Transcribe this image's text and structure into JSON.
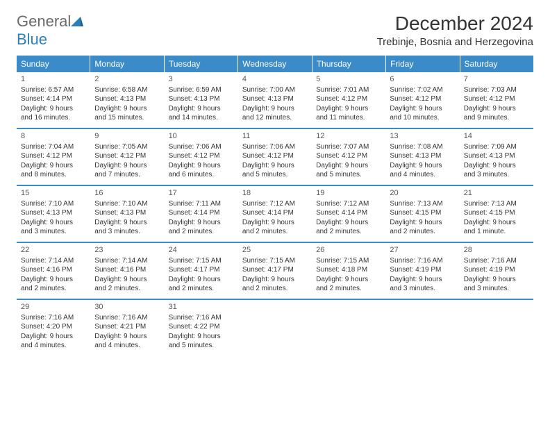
{
  "brand": {
    "word1": "General",
    "word2": "Blue"
  },
  "title": "December 2024",
  "location": "Trebinje, Bosnia and Herzegovina",
  "colors": {
    "header_bg": "#3b8bc8",
    "header_text": "#ffffff",
    "week_divider": "#3b8bc8",
    "body_text": "#333333",
    "logo_gray": "#6a6a6a",
    "logo_blue": "#2c7fb8",
    "page_bg": "#ffffff"
  },
  "fonts": {
    "base_family": "Arial",
    "title_size_pt": 21,
    "location_size_pt": 11,
    "dayhead_size_pt": 9,
    "cell_size_pt": 7.5
  },
  "day_headers": [
    "Sunday",
    "Monday",
    "Tuesday",
    "Wednesday",
    "Thursday",
    "Friday",
    "Saturday"
  ],
  "days": [
    {
      "n": "1",
      "sr": "Sunrise: 6:57 AM",
      "ss": "Sunset: 4:14 PM",
      "dl": "Daylight: 9 hours and 16 minutes."
    },
    {
      "n": "2",
      "sr": "Sunrise: 6:58 AM",
      "ss": "Sunset: 4:13 PM",
      "dl": "Daylight: 9 hours and 15 minutes."
    },
    {
      "n": "3",
      "sr": "Sunrise: 6:59 AM",
      "ss": "Sunset: 4:13 PM",
      "dl": "Daylight: 9 hours and 14 minutes."
    },
    {
      "n": "4",
      "sr": "Sunrise: 7:00 AM",
      "ss": "Sunset: 4:13 PM",
      "dl": "Daylight: 9 hours and 12 minutes."
    },
    {
      "n": "5",
      "sr": "Sunrise: 7:01 AM",
      "ss": "Sunset: 4:12 PM",
      "dl": "Daylight: 9 hours and 11 minutes."
    },
    {
      "n": "6",
      "sr": "Sunrise: 7:02 AM",
      "ss": "Sunset: 4:12 PM",
      "dl": "Daylight: 9 hours and 10 minutes."
    },
    {
      "n": "7",
      "sr": "Sunrise: 7:03 AM",
      "ss": "Sunset: 4:12 PM",
      "dl": "Daylight: 9 hours and 9 minutes."
    },
    {
      "n": "8",
      "sr": "Sunrise: 7:04 AM",
      "ss": "Sunset: 4:12 PM",
      "dl": "Daylight: 9 hours and 8 minutes."
    },
    {
      "n": "9",
      "sr": "Sunrise: 7:05 AM",
      "ss": "Sunset: 4:12 PM",
      "dl": "Daylight: 9 hours and 7 minutes."
    },
    {
      "n": "10",
      "sr": "Sunrise: 7:06 AM",
      "ss": "Sunset: 4:12 PM",
      "dl": "Daylight: 9 hours and 6 minutes."
    },
    {
      "n": "11",
      "sr": "Sunrise: 7:06 AM",
      "ss": "Sunset: 4:12 PM",
      "dl": "Daylight: 9 hours and 5 minutes."
    },
    {
      "n": "12",
      "sr": "Sunrise: 7:07 AM",
      "ss": "Sunset: 4:12 PM",
      "dl": "Daylight: 9 hours and 5 minutes."
    },
    {
      "n": "13",
      "sr": "Sunrise: 7:08 AM",
      "ss": "Sunset: 4:13 PM",
      "dl": "Daylight: 9 hours and 4 minutes."
    },
    {
      "n": "14",
      "sr": "Sunrise: 7:09 AM",
      "ss": "Sunset: 4:13 PM",
      "dl": "Daylight: 9 hours and 3 minutes."
    },
    {
      "n": "15",
      "sr": "Sunrise: 7:10 AM",
      "ss": "Sunset: 4:13 PM",
      "dl": "Daylight: 9 hours and 3 minutes."
    },
    {
      "n": "16",
      "sr": "Sunrise: 7:10 AM",
      "ss": "Sunset: 4:13 PM",
      "dl": "Daylight: 9 hours and 3 minutes."
    },
    {
      "n": "17",
      "sr": "Sunrise: 7:11 AM",
      "ss": "Sunset: 4:14 PM",
      "dl": "Daylight: 9 hours and 2 minutes."
    },
    {
      "n": "18",
      "sr": "Sunrise: 7:12 AM",
      "ss": "Sunset: 4:14 PM",
      "dl": "Daylight: 9 hours and 2 minutes."
    },
    {
      "n": "19",
      "sr": "Sunrise: 7:12 AM",
      "ss": "Sunset: 4:14 PM",
      "dl": "Daylight: 9 hours and 2 minutes."
    },
    {
      "n": "20",
      "sr": "Sunrise: 7:13 AM",
      "ss": "Sunset: 4:15 PM",
      "dl": "Daylight: 9 hours and 2 minutes."
    },
    {
      "n": "21",
      "sr": "Sunrise: 7:13 AM",
      "ss": "Sunset: 4:15 PM",
      "dl": "Daylight: 9 hours and 1 minute."
    },
    {
      "n": "22",
      "sr": "Sunrise: 7:14 AM",
      "ss": "Sunset: 4:16 PM",
      "dl": "Daylight: 9 hours and 2 minutes."
    },
    {
      "n": "23",
      "sr": "Sunrise: 7:14 AM",
      "ss": "Sunset: 4:16 PM",
      "dl": "Daylight: 9 hours and 2 minutes."
    },
    {
      "n": "24",
      "sr": "Sunrise: 7:15 AM",
      "ss": "Sunset: 4:17 PM",
      "dl": "Daylight: 9 hours and 2 minutes."
    },
    {
      "n": "25",
      "sr": "Sunrise: 7:15 AM",
      "ss": "Sunset: 4:17 PM",
      "dl": "Daylight: 9 hours and 2 minutes."
    },
    {
      "n": "26",
      "sr": "Sunrise: 7:15 AM",
      "ss": "Sunset: 4:18 PM",
      "dl": "Daylight: 9 hours and 2 minutes."
    },
    {
      "n": "27",
      "sr": "Sunrise: 7:16 AM",
      "ss": "Sunset: 4:19 PM",
      "dl": "Daylight: 9 hours and 3 minutes."
    },
    {
      "n": "28",
      "sr": "Sunrise: 7:16 AM",
      "ss": "Sunset: 4:19 PM",
      "dl": "Daylight: 9 hours and 3 minutes."
    },
    {
      "n": "29",
      "sr": "Sunrise: 7:16 AM",
      "ss": "Sunset: 4:20 PM",
      "dl": "Daylight: 9 hours and 4 minutes."
    },
    {
      "n": "30",
      "sr": "Sunrise: 7:16 AM",
      "ss": "Sunset: 4:21 PM",
      "dl": "Daylight: 9 hours and 4 minutes."
    },
    {
      "n": "31",
      "sr": "Sunrise: 7:16 AM",
      "ss": "Sunset: 4:22 PM",
      "dl": "Daylight: 9 hours and 5 minutes."
    }
  ],
  "layout": {
    "columns": 7,
    "rows": 5,
    "start_weekday_index": 0,
    "trailing_empty": 4
  }
}
